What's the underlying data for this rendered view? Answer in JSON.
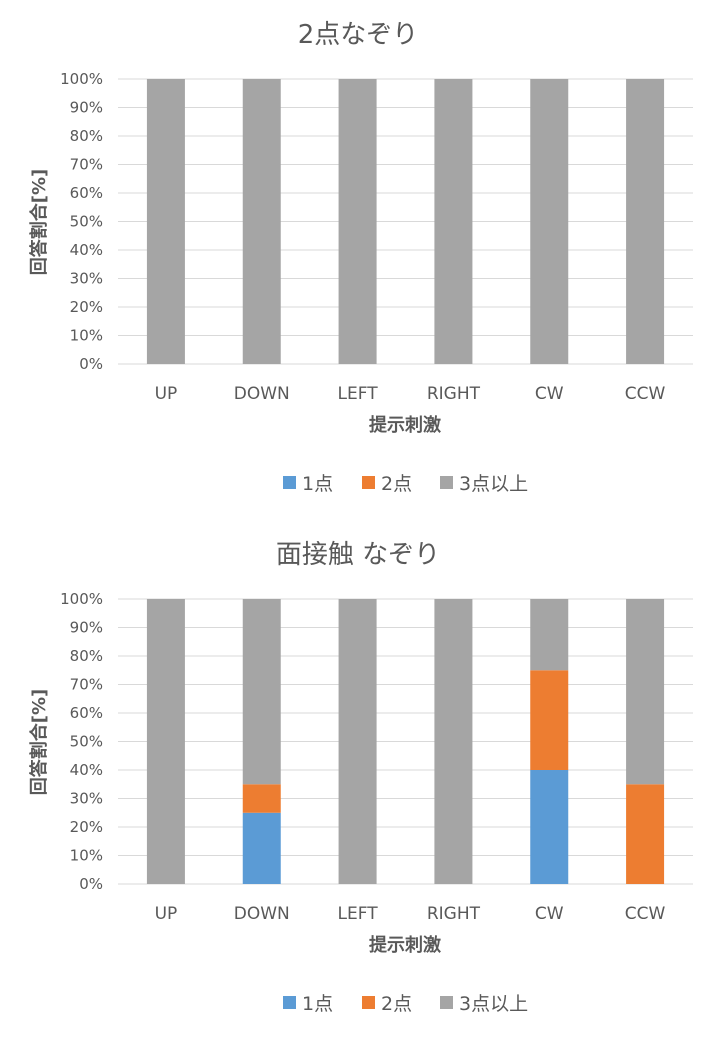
{
  "chart_data": [
    {
      "type": "bar",
      "stacked": true,
      "percent": true,
      "title": "2点なぞり",
      "xlabel": "提示刺激",
      "ylabel": "回答割合[%]",
      "categories": [
        "UP",
        "DOWN",
        "LEFT",
        "RIGHT",
        "CW",
        "CCW"
      ],
      "series": [
        {
          "name": "1点",
          "color": "#5b9bd5",
          "values": [
            0,
            0,
            0,
            0,
            0,
            0
          ]
        },
        {
          "name": "2点",
          "color": "#ed7d31",
          "values": [
            0,
            0,
            0,
            0,
            0,
            0
          ]
        },
        {
          "name": "3点以上",
          "color": "#a5a5a5",
          "values": [
            100,
            100,
            100,
            100,
            100,
            100
          ]
        }
      ],
      "ylim": [
        0,
        100
      ],
      "yticks": [
        "0%",
        "10%",
        "20%",
        "30%",
        "40%",
        "50%",
        "60%",
        "70%",
        "80%",
        "90%",
        "100%"
      ],
      "grid": true,
      "legend": "bottom"
    },
    {
      "type": "bar",
      "stacked": true,
      "percent": true,
      "title": "面接触 なぞり",
      "xlabel": "提示刺激",
      "ylabel": "回答割合[%]",
      "categories": [
        "UP",
        "DOWN",
        "LEFT",
        "RIGHT",
        "CW",
        "CCW"
      ],
      "series": [
        {
          "name": "1点",
          "color": "#5b9bd5",
          "values": [
            0,
            25,
            0,
            0,
            40,
            0
          ]
        },
        {
          "name": "2点",
          "color": "#ed7d31",
          "values": [
            0,
            10,
            0,
            0,
            35,
            35
          ]
        },
        {
          "name": "3点以上",
          "color": "#a5a5a5",
          "values": [
            100,
            65,
            100,
            100,
            25,
            65
          ]
        }
      ],
      "ylim": [
        0,
        100
      ],
      "yticks": [
        "0%",
        "10%",
        "20%",
        "30%",
        "40%",
        "50%",
        "60%",
        "70%",
        "80%",
        "90%",
        "100%"
      ],
      "grid": true,
      "legend": "bottom"
    }
  ]
}
